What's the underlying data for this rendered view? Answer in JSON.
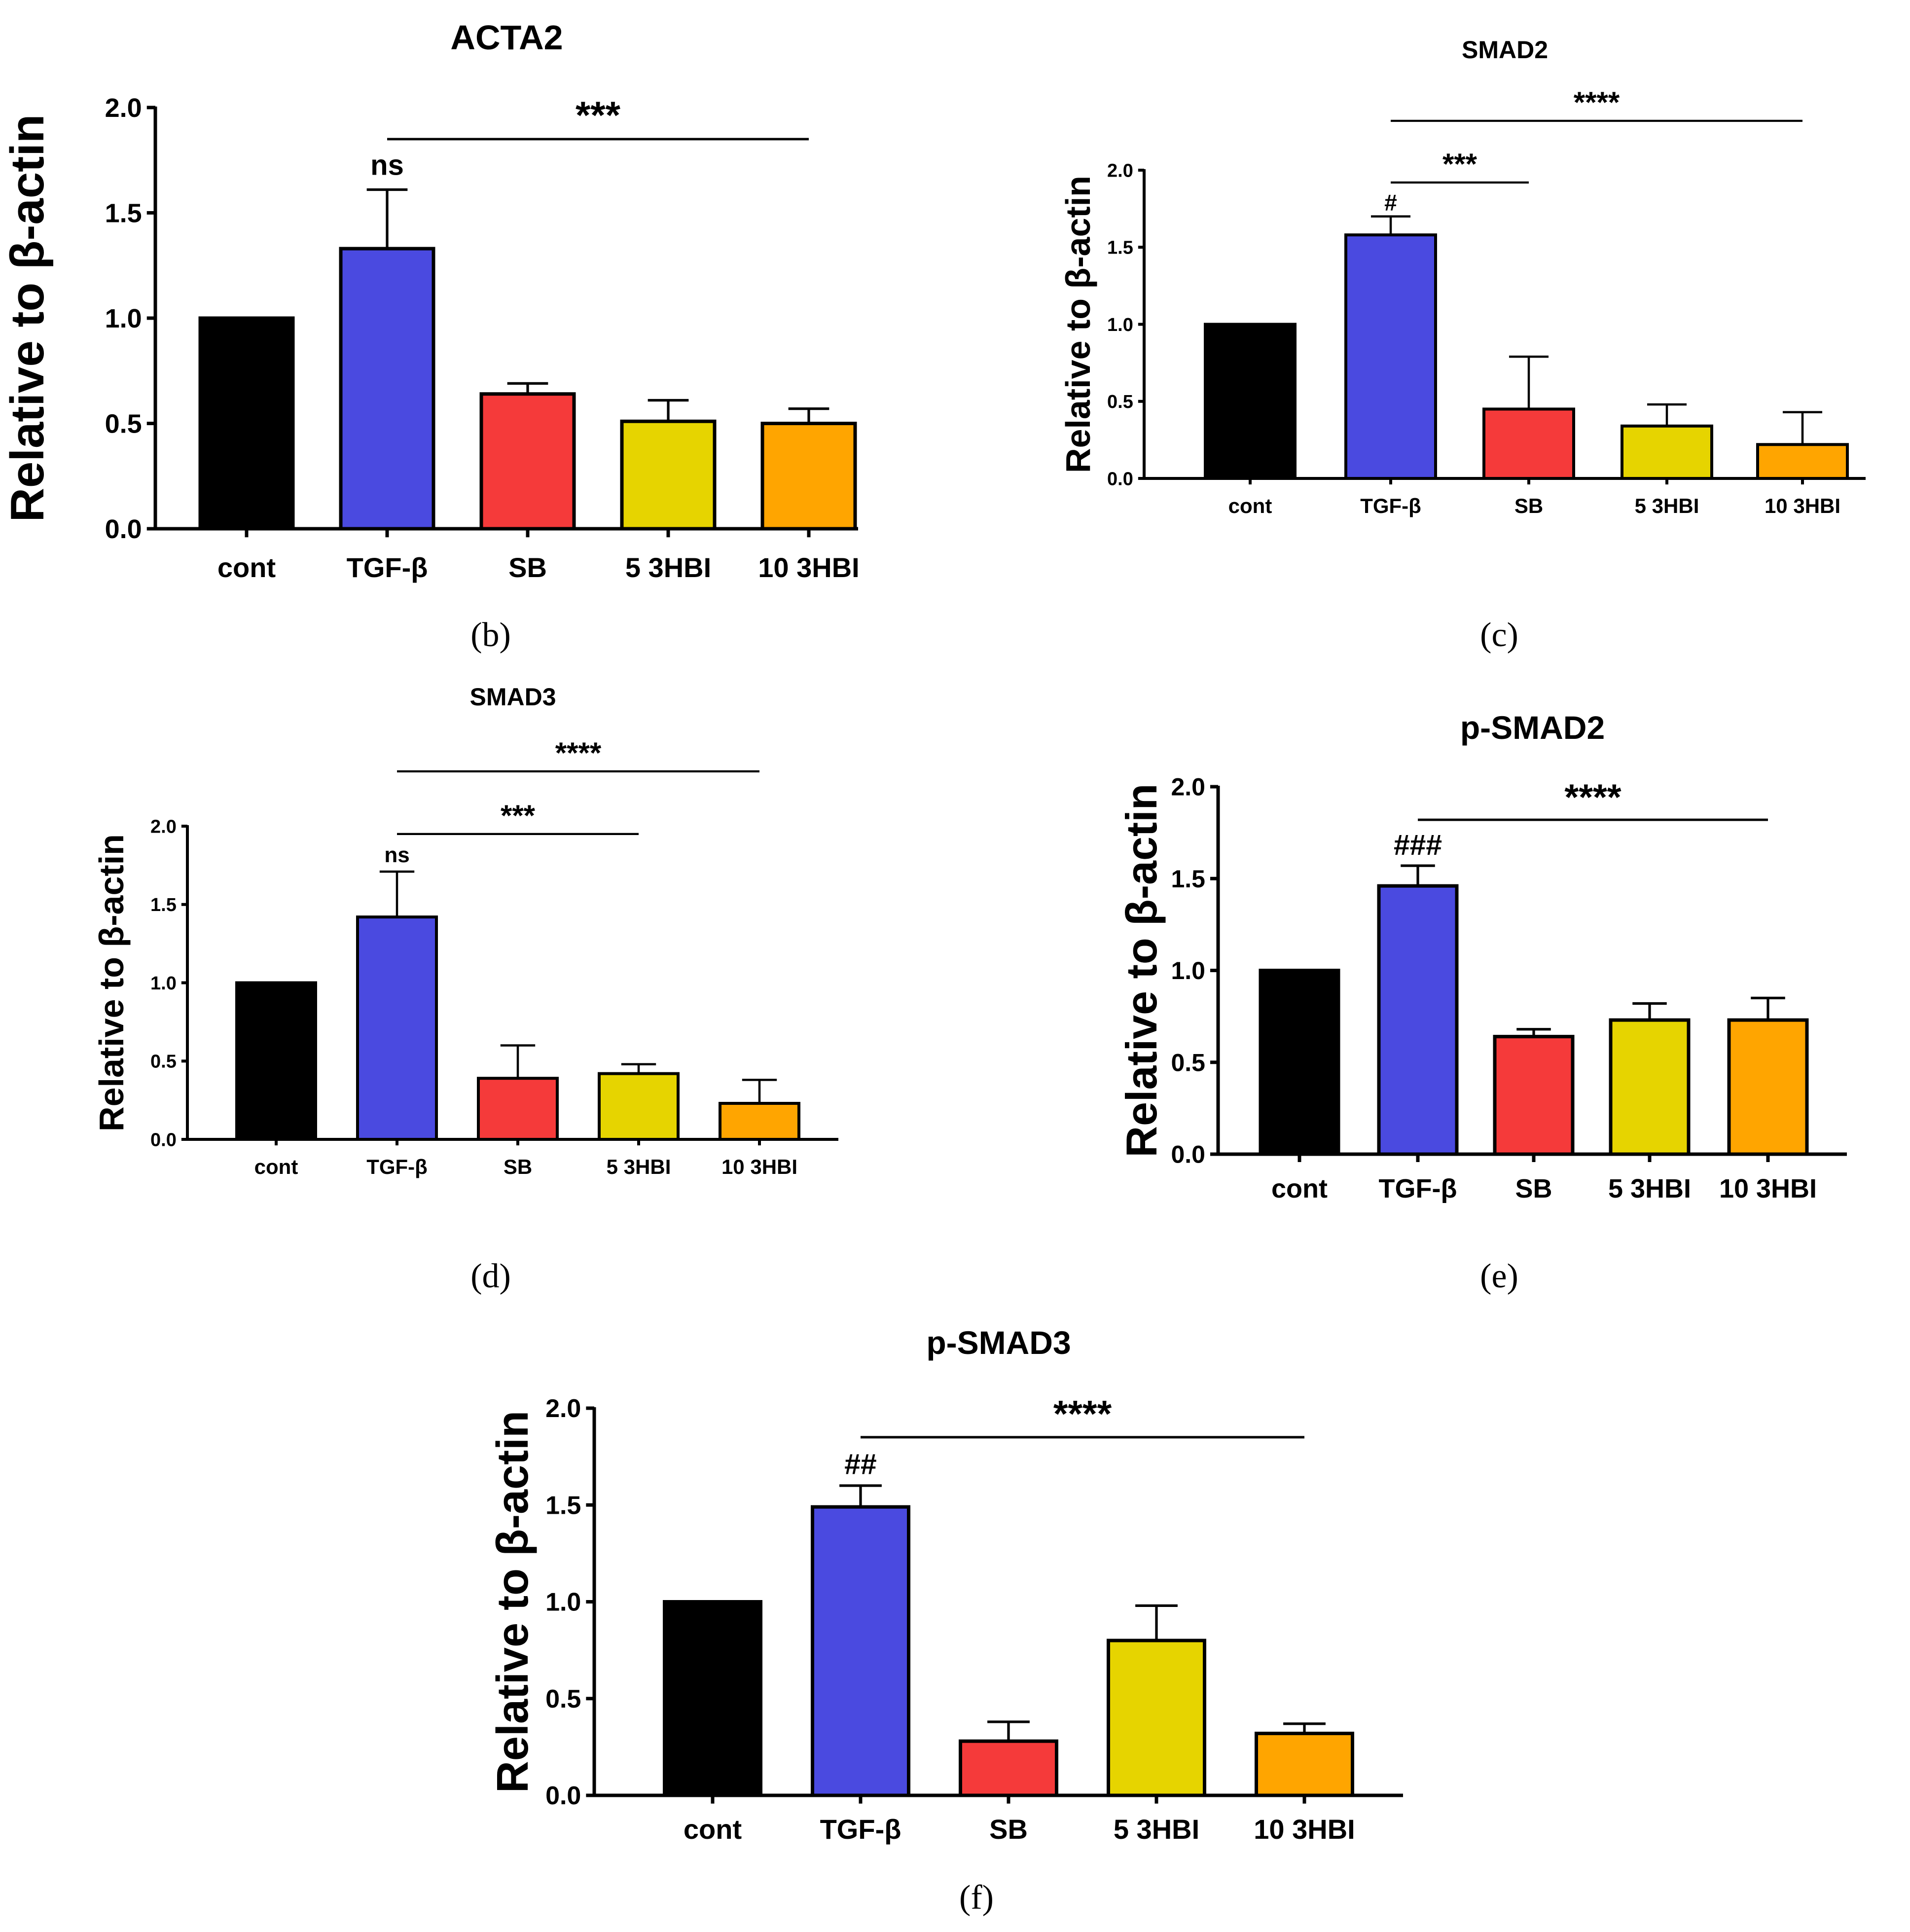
{
  "chart_data": [
    {
      "type": "bar",
      "panel": "b",
      "title": "ACTA2",
      "ylabel": "Relative to β-actin",
      "xlabel": "",
      "ylim": [
        0,
        2.0
      ],
      "yticks": [
        "0.0",
        "0.5",
        "1.0",
        "1.5",
        "2.0"
      ],
      "categories": [
        "cont",
        "TGF-β",
        "SB",
        "5 3HBI",
        "10 3HBI"
      ],
      "values": [
        1.0,
        1.33,
        0.64,
        0.51,
        0.5
      ],
      "errors": [
        0,
        0.28,
        0.05,
        0.1,
        0.07
      ],
      "colors": [
        "#000000",
        "#4a4ae0",
        "#f53a3a",
        "#e6d400",
        "#ffa500"
      ],
      "annotations": [
        {
          "type": "label",
          "text": "ns",
          "category": 1,
          "y": 1.68
        },
        {
          "type": "bracket",
          "text": "***",
          "from": 1,
          "to": 4,
          "y": 1.85
        }
      ],
      "grid": false
    },
    {
      "type": "bar",
      "panel": "c",
      "title": "SMAD2",
      "ylabel": "Relative to β-actin",
      "xlabel": "",
      "ylim": [
        0,
        2.0
      ],
      "yticks": [
        "0.0",
        "0.5",
        "1.0",
        "1.5",
        "2.0"
      ],
      "categories": [
        "cont",
        "TGF-β",
        "SB",
        "5 3HBI",
        "10 3HBI"
      ],
      "values": [
        1.0,
        1.58,
        0.45,
        0.34,
        0.22
      ],
      "errors": [
        0,
        0.12,
        0.34,
        0.14,
        0.21
      ],
      "colors": [
        "#000000",
        "#4a4ae0",
        "#f53a3a",
        "#e6d400",
        "#ffa500"
      ],
      "annotations": [
        {
          "type": "label",
          "text": "#",
          "category": 1,
          "y": 1.74
        },
        {
          "type": "bracket",
          "text": "***",
          "from": 1,
          "to": 2,
          "y": 1.92
        },
        {
          "type": "bracket",
          "text": "****",
          "from": 1,
          "to": 4,
          "y": 2.32
        }
      ],
      "grid": false
    },
    {
      "type": "bar",
      "panel": "d",
      "title": "SMAD3",
      "ylabel": "Relative to β-actin",
      "xlabel": "",
      "ylim": [
        0,
        2.0
      ],
      "yticks": [
        "0.0",
        "0.5",
        "1.0",
        "1.5",
        "2.0"
      ],
      "categories": [
        "cont",
        "TGF-β",
        "SB",
        "5 3HBI",
        "10 3HBI"
      ],
      "values": [
        1.0,
        1.42,
        0.39,
        0.42,
        0.23
      ],
      "errors": [
        0,
        0.29,
        0.21,
        0.06,
        0.15
      ],
      "colors": [
        "#000000",
        "#4a4ae0",
        "#f53a3a",
        "#e6d400",
        "#ffa500"
      ],
      "annotations": [
        {
          "type": "label",
          "text": "ns",
          "category": 1,
          "y": 1.77
        },
        {
          "type": "bracket",
          "text": "***",
          "from": 1,
          "to": 3,
          "y": 1.95
        },
        {
          "type": "bracket",
          "text": "****",
          "from": 1,
          "to": 4,
          "y": 2.35
        }
      ],
      "grid": false
    },
    {
      "type": "bar",
      "panel": "e",
      "title": "p-SMAD2",
      "ylabel": "Relative to β-actin",
      "xlabel": "",
      "ylim": [
        0,
        2.0
      ],
      "yticks": [
        "0.0",
        "0.5",
        "1.0",
        "1.5",
        "2.0"
      ],
      "categories": [
        "cont",
        "TGF-β",
        "SB",
        "5 3HBI",
        "10 3HBI"
      ],
      "values": [
        1.0,
        1.46,
        0.64,
        0.73,
        0.73
      ],
      "errors": [
        0,
        0.11,
        0.04,
        0.09,
        0.12
      ],
      "colors": [
        "#000000",
        "#4a4ae0",
        "#f53a3a",
        "#e6d400",
        "#ffa500"
      ],
      "annotations": [
        {
          "type": "label",
          "text": "###",
          "category": 1,
          "y": 1.63
        },
        {
          "type": "bracket",
          "text": "****",
          "from": 1,
          "to": 4,
          "y": 1.82
        }
      ],
      "grid": false
    },
    {
      "type": "bar",
      "panel": "f",
      "title": "p-SMAD3",
      "ylabel": "Relative to β-actin",
      "xlabel": "",
      "ylim": [
        0,
        2.0
      ],
      "yticks": [
        "0.0",
        "0.5",
        "1.0",
        "1.5",
        "2.0"
      ],
      "categories": [
        "cont",
        "TGF-β",
        "SB",
        "5 3HBI",
        "10 3HBI"
      ],
      "values": [
        1.0,
        1.49,
        0.28,
        0.8,
        0.32
      ],
      "errors": [
        0,
        0.11,
        0.1,
        0.18,
        0.05
      ],
      "colors": [
        "#000000",
        "#4a4ae0",
        "#f53a3a",
        "#e6d400",
        "#ffa500"
      ],
      "annotations": [
        {
          "type": "label",
          "text": "##",
          "category": 1,
          "y": 1.66
        },
        {
          "type": "bracket",
          "text": "****",
          "from": 1,
          "to": 4,
          "y": 1.85
        }
      ],
      "grid": false
    }
  ],
  "panel_labels": [
    "(b)",
    "(c)",
    "(d)",
    "(e)",
    "(f)"
  ]
}
